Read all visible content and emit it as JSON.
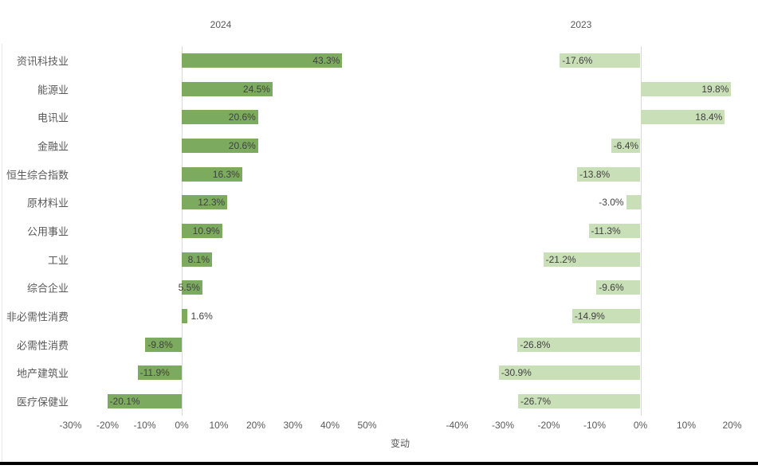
{
  "chart_data": {
    "type": "bar",
    "orientation": "horizontal",
    "grid": "none",
    "xlabel": "变动",
    "categories": [
      "资讯科技业",
      "能源业",
      "电讯业",
      "金融业",
      "恒生综合指数",
      "原材料业",
      "公用事业",
      "工业",
      "综合企业",
      "非必需性消费",
      "必需性消费",
      "地产建筑业",
      "医疗保健业"
    ],
    "series": [
      {
        "name": "2024",
        "values": [
          43.3,
          24.5,
          20.6,
          20.6,
          16.3,
          12.3,
          10.9,
          8.1,
          5.5,
          1.6,
          -9.8,
          -11.9,
          -20.1
        ],
        "labels": [
          "43.3%",
          "24.5%",
          "20.6%",
          "20.6%",
          "16.3%",
          "12.3%",
          "10.9%",
          "8.1%",
          "5.5%",
          "1.6%",
          "-9.8%",
          "-11.9%",
          "-20.1%"
        ],
        "xlim": [
          -30,
          50
        ],
        "xtick_step": 10,
        "xticks": [
          "-30%",
          "-20%",
          "-10%",
          "0%",
          "10%",
          "20%",
          "30%",
          "40%",
          "50%"
        ],
        "bar_color": "#7cab60"
      },
      {
        "name": "2023",
        "values": [
          -17.6,
          19.8,
          18.4,
          -6.4,
          -13.8,
          -3.0,
          -11.3,
          -21.2,
          -9.6,
          -14.9,
          -26.8,
          -30.9,
          -26.7
        ],
        "labels": [
          "-17.6%",
          "19.8%",
          "18.4%",
          "-6.4%",
          "-13.8%",
          "-3.0%",
          "-11.3%",
          "-21.2%",
          "-9.6%",
          "-14.9%",
          "-26.8%",
          "-30.9%",
          "-26.7%"
        ],
        "xlim": [
          -40,
          20
        ],
        "xtick_step": 10,
        "xticks": [
          "-40%",
          "-30%",
          "-20%",
          "-10%",
          "0%",
          "10%",
          "20%"
        ],
        "bar_color": "#c9dfb7"
      }
    ],
    "colors": {
      "bar_2024": "#7cab60",
      "bar_2023": "#c9dfb7",
      "axis_text": "#595959",
      "data_label_text": "#404040",
      "zero_line": "#d9d9d9",
      "bottom_rule": "#000000"
    }
  }
}
